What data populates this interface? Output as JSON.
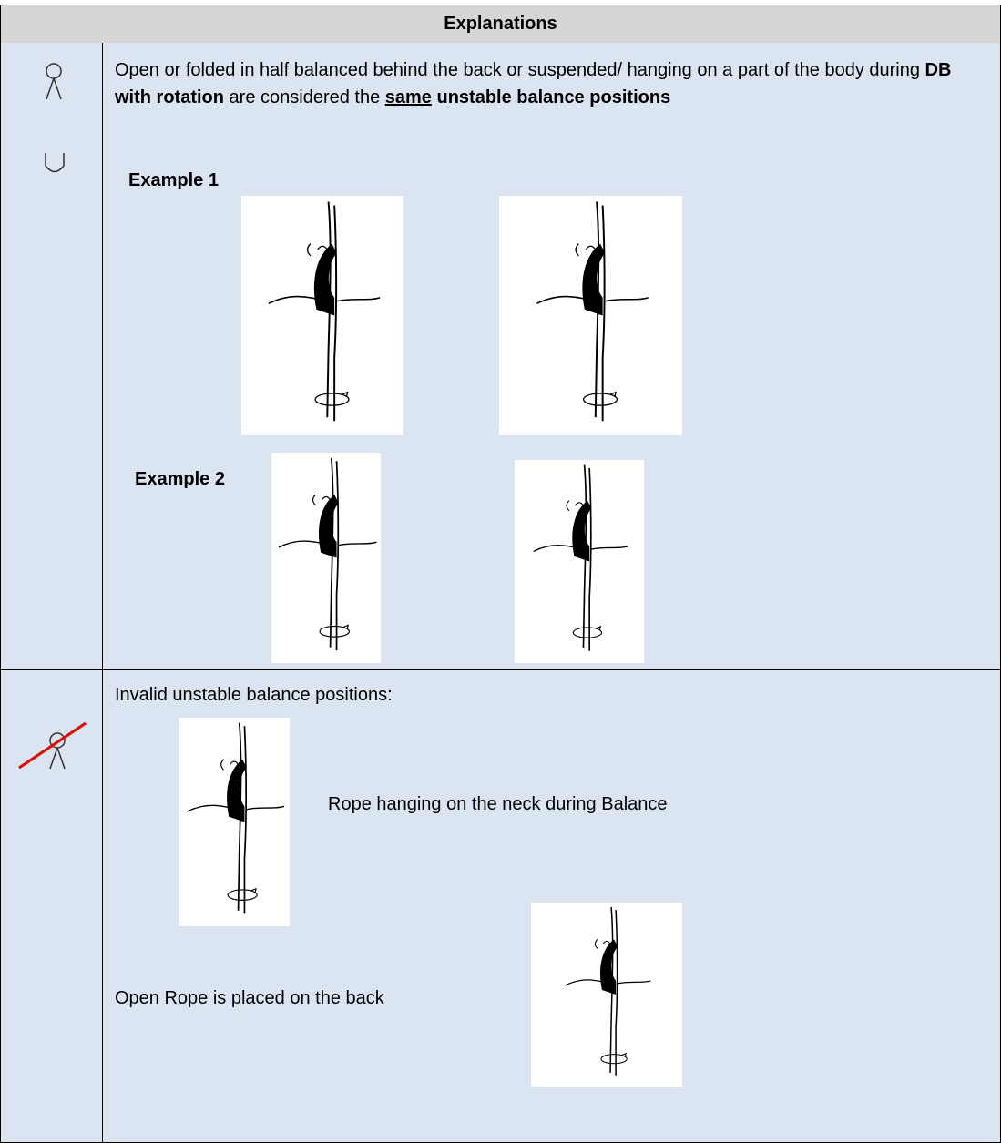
{
  "header": {
    "title": "Explanations"
  },
  "rows": [
    {
      "paragraph": [
        "Open or folded in half balanced behind the back or suspended/ hanging on a part of the body during ",
        "DB with rotation",
        " are considered the ",
        "same",
        " unstable balance positions"
      ],
      "examples": [
        "Example 1",
        "Example 2"
      ]
    },
    {
      "intro": "Invalid unstable balance positions:",
      "captions": [
        "Rope hanging on the neck during Balance",
        "Open Rope is placed on the back"
      ]
    }
  ]
}
